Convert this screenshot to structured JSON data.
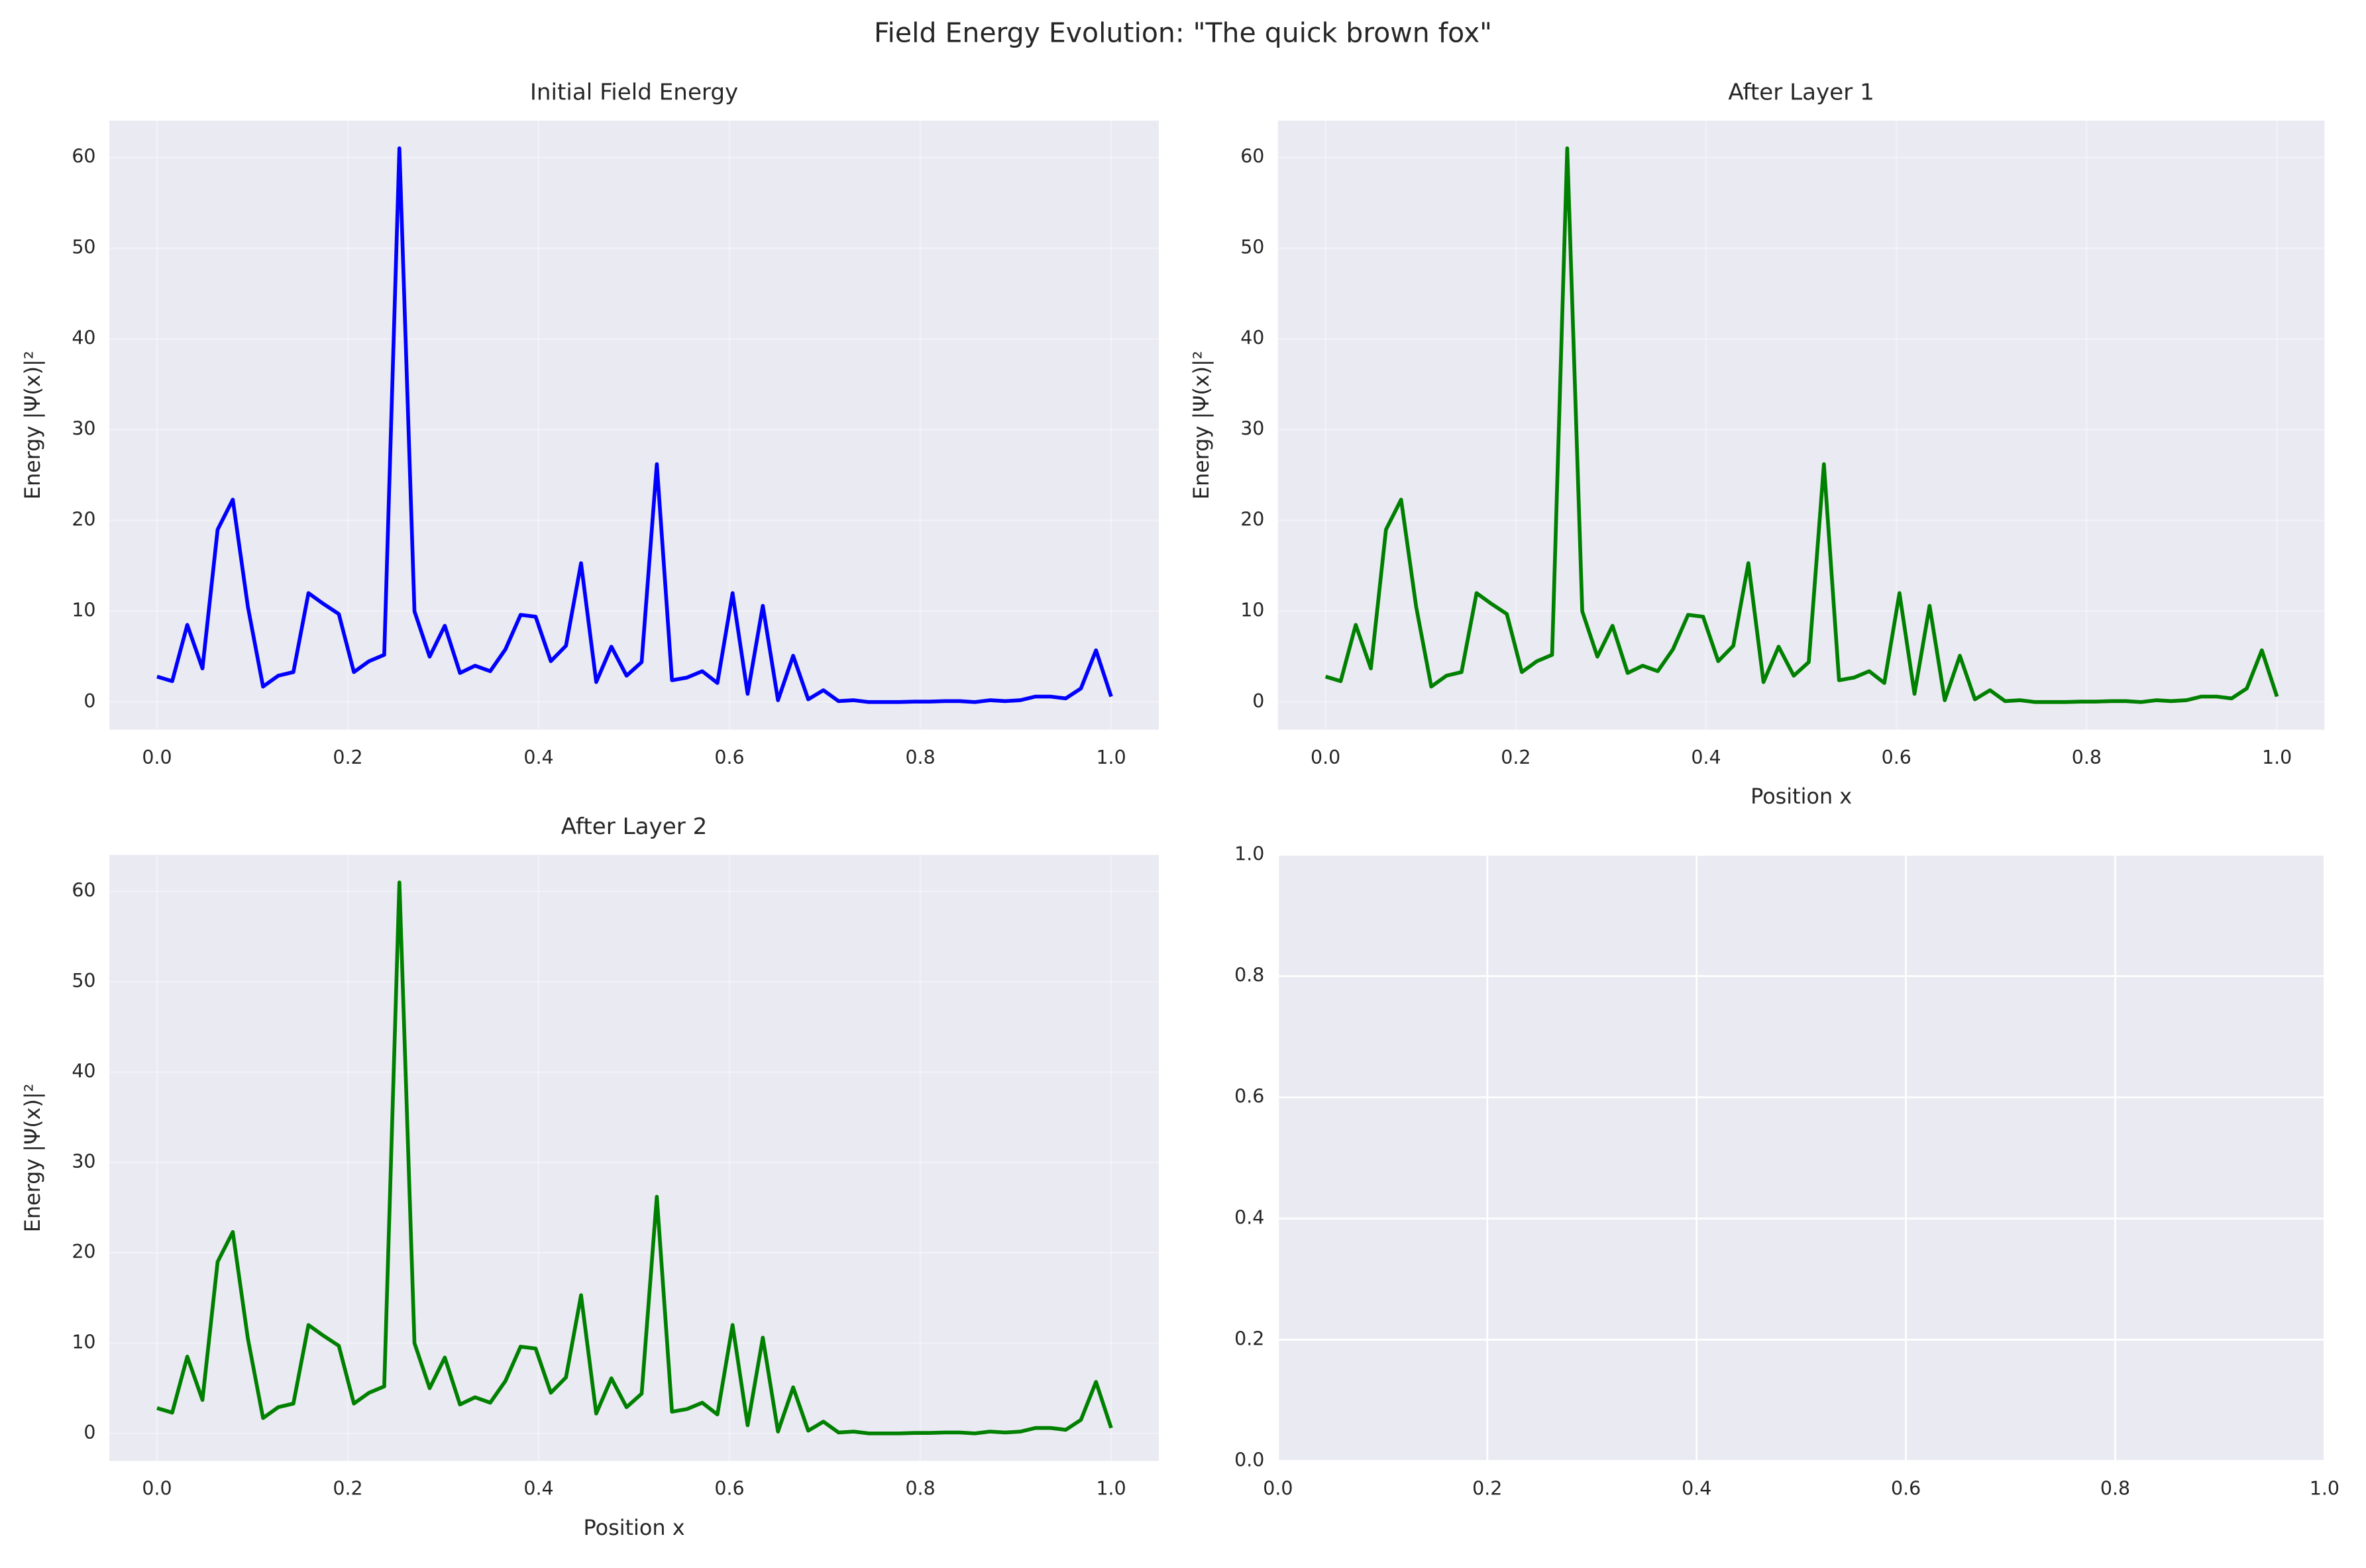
{
  "title": "Field Energy Evolution: \"The quick brown fox\"",
  "chart_data": [
    {
      "type": "line",
      "title": "Initial Field Energy",
      "ylabel": "Energy |Ψ(x)|²",
      "x": [
        0,
        0.0159,
        0.0317,
        0.0476,
        0.0635,
        0.0794,
        0.0952,
        0.1111,
        0.127,
        0.1429,
        0.1587,
        0.1746,
        0.1905,
        0.2063,
        0.2222,
        0.2381,
        0.254,
        0.2698,
        0.2857,
        0.3016,
        0.3175,
        0.3333,
        0.3492,
        0.3651,
        0.381,
        0.3968,
        0.4127,
        0.4286,
        0.4444,
        0.4603,
        0.4762,
        0.4921,
        0.5079,
        0.5238,
        0.5397,
        0.5556,
        0.5714,
        0.5873,
        0.6032,
        0.619,
        0.6349,
        0.6508,
        0.6667,
        0.6825,
        0.6984,
        0.7143,
        0.7302,
        0.746,
        0.7619,
        0.7778,
        0.7937,
        0.8095,
        0.8254,
        0.8413,
        0.8571,
        0.873,
        0.8889,
        0.9048,
        0.9206,
        0.9365,
        0.9524,
        0.9683,
        0.9841,
        1
      ],
      "series": [
        {
          "color": "#0000ff",
          "values": [
            2.8,
            2.3,
            8.5,
            3.7,
            19,
            22.3,
            10.5,
            1.7,
            2.9,
            3.3,
            12,
            10.8,
            9.7,
            3.3,
            4.5,
            5.2,
            61,
            10,
            5,
            8.4,
            3.2,
            4,
            3.4,
            5.8,
            9.6,
            9.4,
            4.5,
            6.2,
            15.3,
            2.2,
            6.1,
            2.9,
            4.4,
            26.2,
            2.4,
            2.7,
            3.4,
            2.1,
            12,
            0.9,
            10.6,
            0.2,
            5.1,
            0.3,
            1.3,
            0.1,
            0.2,
            0,
            0,
            0,
            0.05,
            0.05,
            0.1,
            0.1,
            0,
            0.2,
            0.1,
            0.2,
            0.6,
            0.6,
            0.4,
            1.5,
            5.7,
            0.6
          ]
        }
      ],
      "xlim": [
        -0.05,
        1.05
      ],
      "ylim": [
        -3.05,
        64.05
      ],
      "xticks": [
        {
          "value": 0,
          "label": "0.0"
        },
        {
          "value": 0.2,
          "label": "0.2"
        },
        {
          "value": 0.4,
          "label": "0.4"
        },
        {
          "value": 0.6,
          "label": "0.6"
        },
        {
          "value": 0.8,
          "label": "0.8"
        },
        {
          "value": 1,
          "label": "1.0"
        }
      ],
      "yticks": [
        0,
        10,
        20,
        30,
        40,
        50,
        60
      ],
      "grid": true,
      "grid_alpha": 0.3
    },
    {
      "type": "line",
      "title": "After Layer 1",
      "xlabel": "Position x",
      "ylabel": "Energy |Ψ(x)|²",
      "x": [
        0,
        0.0159,
        0.0317,
        0.0476,
        0.0635,
        0.0794,
        0.0952,
        0.1111,
        0.127,
        0.1429,
        0.1587,
        0.1746,
        0.1905,
        0.2063,
        0.2222,
        0.2381,
        0.254,
        0.2698,
        0.2857,
        0.3016,
        0.3175,
        0.3333,
        0.3492,
        0.3651,
        0.381,
        0.3968,
        0.4127,
        0.4286,
        0.4444,
        0.4603,
        0.4762,
        0.4921,
        0.5079,
        0.5238,
        0.5397,
        0.5556,
        0.5714,
        0.5873,
        0.6032,
        0.619,
        0.6349,
        0.6508,
        0.6667,
        0.6825,
        0.6984,
        0.7143,
        0.7302,
        0.746,
        0.7619,
        0.7778,
        0.7937,
        0.8095,
        0.8254,
        0.8413,
        0.8571,
        0.873,
        0.8889,
        0.9048,
        0.9206,
        0.9365,
        0.9524,
        0.9683,
        0.9841,
        1
      ],
      "series": [
        {
          "color": "#008000",
          "values": [
            2.8,
            2.3,
            8.5,
            3.7,
            19,
            22.3,
            10.5,
            1.7,
            2.9,
            3.3,
            12,
            10.8,
            9.7,
            3.3,
            4.5,
            5.2,
            61,
            10,
            5,
            8.4,
            3.2,
            4,
            3.4,
            5.8,
            9.6,
            9.4,
            4.5,
            6.2,
            15.3,
            2.2,
            6.1,
            2.9,
            4.4,
            26.2,
            2.4,
            2.7,
            3.4,
            2.1,
            12,
            0.9,
            10.6,
            0.2,
            5.1,
            0.3,
            1.3,
            0.1,
            0.2,
            0,
            0,
            0,
            0.05,
            0.05,
            0.1,
            0.1,
            0,
            0.2,
            0.1,
            0.2,
            0.6,
            0.6,
            0.4,
            1.5,
            5.7,
            0.6
          ]
        }
      ],
      "xlim": [
        -0.05,
        1.05
      ],
      "ylim": [
        -3.05,
        64.05
      ],
      "xticks": [
        {
          "value": 0,
          "label": "0.0"
        },
        {
          "value": 0.2,
          "label": "0.2"
        },
        {
          "value": 0.4,
          "label": "0.4"
        },
        {
          "value": 0.6,
          "label": "0.6"
        },
        {
          "value": 0.8,
          "label": "0.8"
        },
        {
          "value": 1,
          "label": "1.0"
        }
      ],
      "yticks": [
        0,
        10,
        20,
        30,
        40,
        50,
        60
      ],
      "grid": true,
      "grid_alpha": 0.3
    },
    {
      "type": "line",
      "title": "After Layer 2",
      "xlabel": "Position x",
      "ylabel": "Energy |Ψ(x)|²",
      "x": [
        0,
        0.0159,
        0.0317,
        0.0476,
        0.0635,
        0.0794,
        0.0952,
        0.1111,
        0.127,
        0.1429,
        0.1587,
        0.1746,
        0.1905,
        0.2063,
        0.2222,
        0.2381,
        0.254,
        0.2698,
        0.2857,
        0.3016,
        0.3175,
        0.3333,
        0.3492,
        0.3651,
        0.381,
        0.3968,
        0.4127,
        0.4286,
        0.4444,
        0.4603,
        0.4762,
        0.4921,
        0.5079,
        0.5238,
        0.5397,
        0.5556,
        0.5714,
        0.5873,
        0.6032,
        0.619,
        0.6349,
        0.6508,
        0.6667,
        0.6825,
        0.6984,
        0.7143,
        0.7302,
        0.746,
        0.7619,
        0.7778,
        0.7937,
        0.8095,
        0.8254,
        0.8413,
        0.8571,
        0.873,
        0.8889,
        0.9048,
        0.9206,
        0.9365,
        0.9524,
        0.9683,
        0.9841,
        1
      ],
      "series": [
        {
          "color": "#008000",
          "values": [
            2.8,
            2.3,
            8.5,
            3.7,
            19,
            22.3,
            10.5,
            1.7,
            2.9,
            3.3,
            12,
            10.8,
            9.7,
            3.3,
            4.5,
            5.2,
            61,
            10,
            5,
            8.4,
            3.2,
            4,
            3.4,
            5.8,
            9.6,
            9.4,
            4.5,
            6.2,
            15.3,
            2.2,
            6.1,
            2.9,
            4.4,
            26.2,
            2.4,
            2.7,
            3.4,
            2.1,
            12,
            0.9,
            10.6,
            0.2,
            5.1,
            0.3,
            1.3,
            0.1,
            0.2,
            0,
            0,
            0,
            0.05,
            0.05,
            0.1,
            0.1,
            0,
            0.2,
            0.1,
            0.2,
            0.6,
            0.6,
            0.4,
            1.5,
            5.7,
            0.6
          ]
        }
      ],
      "xlim": [
        -0.05,
        1.05
      ],
      "ylim": [
        -3.05,
        64.05
      ],
      "xticks": [
        {
          "value": 0,
          "label": "0.0"
        },
        {
          "value": 0.2,
          "label": "0.2"
        },
        {
          "value": 0.4,
          "label": "0.4"
        },
        {
          "value": 0.6,
          "label": "0.6"
        },
        {
          "value": 0.8,
          "label": "0.8"
        },
        {
          "value": 1,
          "label": "1.0"
        }
      ],
      "yticks": [
        0,
        10,
        20,
        30,
        40,
        50,
        60
      ],
      "grid": true,
      "grid_alpha": 0.3
    },
    {
      "type": "line",
      "series": [],
      "xlim": [
        0,
        1
      ],
      "ylim": [
        0,
        1
      ],
      "xticks": [
        {
          "value": 0,
          "label": "0.0"
        },
        {
          "value": 0.2,
          "label": "0.2"
        },
        {
          "value": 0.4,
          "label": "0.4"
        },
        {
          "value": 0.6,
          "label": "0.6"
        },
        {
          "value": 0.8,
          "label": "0.8"
        },
        {
          "value": 1,
          "label": "1.0"
        }
      ],
      "yticks": [
        {
          "value": 0,
          "label": "0.0"
        },
        {
          "value": 0.2,
          "label": "0.2"
        },
        {
          "value": 0.4,
          "label": "0.4"
        },
        {
          "value": 0.6,
          "label": "0.6"
        },
        {
          "value": 0.8,
          "label": "0.8"
        },
        {
          "value": 1,
          "label": "1.0"
        }
      ],
      "grid": true,
      "grid_alpha": 1
    }
  ]
}
